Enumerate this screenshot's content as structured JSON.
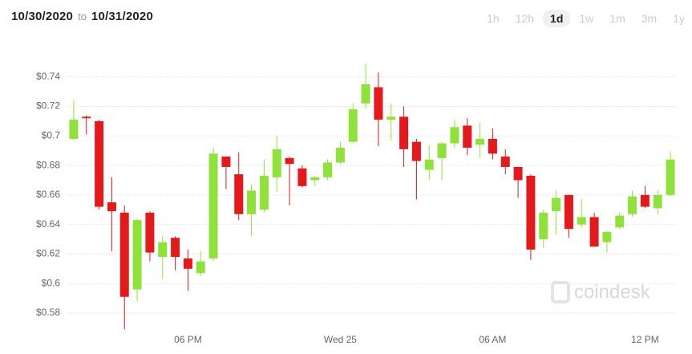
{
  "header": {
    "from": "10/30/2020",
    "separator": "to",
    "to": "10/31/2020"
  },
  "ranges": [
    "1h",
    "12h",
    "1d",
    "1w",
    "1m",
    "3m",
    "1y"
  ],
  "selected_range": "1d",
  "watermark": "coindesk",
  "chart_data": {
    "type": "candlestick",
    "categories": [
      null,
      null,
      null,
      null,
      null,
      null,
      null,
      null,
      null,
      "06 PM",
      null,
      null,
      null,
      null,
      null,
      null,
      null,
      null,
      null,
      null,
      null,
      "Wed 25",
      null,
      null,
      null,
      null,
      null,
      null,
      null,
      null,
      null,
      null,
      null,
      "06 AM",
      null,
      null,
      null,
      null,
      null,
      null,
      null,
      null,
      null,
      null,
      null,
      "12 PM",
      null,
      null
    ],
    "open": [
      0.698,
      0.713,
      0.71,
      0.655,
      0.648,
      0.596,
      0.648,
      0.618,
      0.631,
      0.617,
      0.607,
      0.617,
      0.686,
      0.674,
      0.647,
      0.65,
      0.672,
      0.685,
      0.678,
      0.67,
      0.672,
      0.682,
      0.696,
      0.722,
      0.733,
      0.711,
      0.713,
      0.696,
      0.677,
      0.685,
      0.695,
      0.707,
      0.694,
      0.698,
      0.686,
      0.679,
      0.673,
      0.63,
      0.649,
      0.66,
      0.64,
      0.645,
      0.628,
      0.638,
      0.647,
      0.66,
      0.651,
      0.66
    ],
    "high": [
      0.724,
      0.714,
      0.711,
      0.672,
      0.653,
      0.644,
      0.649,
      0.632,
      0.632,
      0.623,
      0.622,
      0.692,
      0.686,
      0.689,
      0.667,
      0.684,
      0.7,
      0.686,
      0.68,
      0.673,
      0.684,
      0.696,
      0.722,
      0.749,
      0.743,
      0.722,
      0.72,
      0.698,
      0.694,
      0.696,
      0.711,
      0.712,
      0.709,
      0.705,
      0.691,
      0.679,
      0.674,
      0.65,
      0.663,
      0.66,
      0.657,
      0.648,
      0.636,
      0.648,
      0.663,
      0.666,
      0.663,
      0.69
    ],
    "low": [
      0.697,
      0.701,
      0.65,
      0.622,
      0.569,
      0.588,
      0.615,
      0.603,
      0.609,
      0.595,
      0.605,
      0.615,
      0.664,
      0.643,
      0.632,
      0.648,
      0.662,
      0.653,
      0.665,
      0.666,
      0.67,
      0.681,
      0.695,
      0.718,
      0.693,
      0.697,
      0.679,
      0.657,
      0.67,
      0.67,
      0.692,
      0.687,
      0.685,
      0.684,
      0.674,
      0.658,
      0.616,
      0.624,
      0.633,
      0.631,
      0.638,
      0.625,
      0.621,
      0.637,
      0.645,
      0.651,
      0.647,
      0.659
    ],
    "close": [
      0.711,
      0.712,
      0.652,
      0.649,
      0.591,
      0.643,
      0.621,
      0.628,
      0.618,
      0.61,
      0.615,
      0.688,
      0.679,
      0.647,
      0.663,
      0.673,
      0.691,
      0.681,
      0.666,
      0.672,
      0.682,
      0.692,
      0.718,
      0.735,
      0.711,
      0.713,
      0.691,
      0.683,
      0.684,
      0.695,
      0.706,
      0.692,
      0.698,
      0.688,
      0.679,
      0.67,
      0.623,
      0.648,
      0.658,
      0.637,
      0.645,
      0.625,
      0.635,
      0.646,
      0.659,
      0.652,
      0.66,
      0.684
    ],
    "up_color": "#8ee23a",
    "down_color": "#e3191c",
    "ylim": [
      0.5702,
      0.7513
    ],
    "yticks": [
      {
        "value": 0.58,
        "label": "$0.58"
      },
      {
        "value": 0.6,
        "label": "$0.6"
      },
      {
        "value": 0.62,
        "label": "$0.62"
      },
      {
        "value": 0.64,
        "label": "$0.64"
      },
      {
        "value": 0.66,
        "label": "$0.66"
      },
      {
        "value": 0.68,
        "label": "$0.68"
      },
      {
        "value": 0.7,
        "label": "$0.7"
      },
      {
        "value": 0.72,
        "label": "$0.72"
      },
      {
        "value": 0.74,
        "label": "$0.74"
      }
    ],
    "grid": true
  }
}
